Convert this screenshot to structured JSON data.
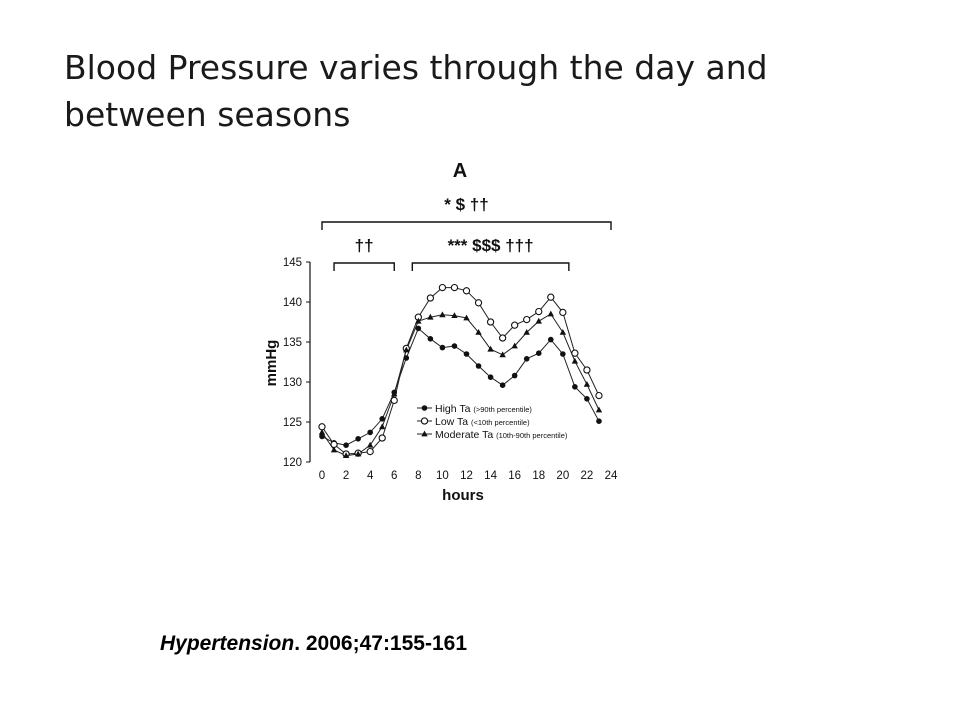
{
  "slide": {
    "title": "Blood Pressure varies through the day and between seasons",
    "citation_journal": "Hypertension",
    "citation_rest": ". 2006;47:155-161"
  },
  "chart_data": {
    "type": "line",
    "panel_label": "A",
    "xlabel": "hours",
    "ylabel": "mmHg",
    "xlim": [
      0,
      24
    ],
    "ylim": [
      120,
      145
    ],
    "xticks": [
      0,
      2,
      4,
      6,
      8,
      10,
      12,
      14,
      16,
      18,
      20,
      22,
      24
    ],
    "yticks": [
      120,
      125,
      130,
      135,
      140,
      145
    ],
    "x": [
      0,
      1,
      2,
      3,
      4,
      5,
      6,
      7,
      8,
      9,
      10,
      11,
      12,
      13,
      14,
      15,
      16,
      17,
      18,
      19,
      20,
      21,
      22,
      23
    ],
    "series": [
      {
        "name": "High Ta",
        "legend_note": "(>90th percentile)",
        "marker": "filled-circle",
        "values": [
          123.2,
          122.4,
          122.1,
          122.9,
          123.7,
          125.4,
          128.7,
          133.0,
          136.7,
          135.4,
          134.3,
          134.5,
          133.5,
          132.0,
          130.6,
          129.6,
          130.8,
          132.9,
          133.6,
          135.3,
          133.5,
          129.4,
          127.9,
          125.1
        ]
      },
      {
        "name": "Low Ta",
        "legend_note": "(<10th percentile)",
        "marker": "open-circle",
        "values": [
          124.4,
          122.2,
          121.0,
          121.1,
          121.3,
          123.0,
          127.7,
          134.2,
          138.1,
          140.5,
          141.8,
          141.8,
          141.4,
          139.9,
          137.5,
          135.5,
          137.1,
          137.8,
          138.8,
          140.6,
          138.7,
          133.6,
          131.5,
          128.3
        ]
      },
      {
        "name": "Moderate Ta",
        "legend_note": "(10th-90th percentile)",
        "marker": "filled-triangle",
        "values": [
          123.7,
          121.5,
          120.8,
          121.0,
          122.1,
          124.4,
          128.5,
          134.0,
          137.6,
          138.1,
          138.4,
          138.3,
          138.0,
          136.2,
          134.1,
          133.4,
          134.5,
          136.2,
          137.6,
          138.5,
          136.2,
          132.6,
          129.7,
          126.5
        ]
      }
    ],
    "annotations": [
      {
        "text": "* $ ††",
        "x_from": 0,
        "x_to": 24
      },
      {
        "text": "††",
        "x_from": 1,
        "x_to": 6
      },
      {
        "text": "*** $$$ †††",
        "x_from": 7.5,
        "x_to": 20.5
      }
    ],
    "legend_position": "bottom-center"
  }
}
